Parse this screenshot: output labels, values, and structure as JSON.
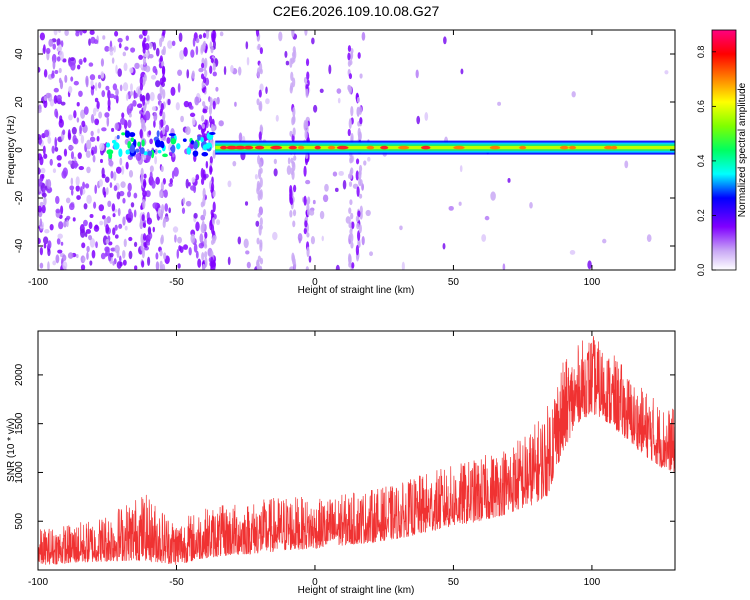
{
  "title": "C2E6.2026.109.10.08.G27",
  "chart_data": [
    {
      "type": "heatmap",
      "xlabel": "Height of straight line (km)",
      "ylabel": "Frequency (Hz)",
      "xlim": [
        -100,
        130
      ],
      "ylim": [
        -50,
        50
      ],
      "xticks": [
        -100,
        -50,
        0,
        50,
        100
      ],
      "xtick_labels": [
        "-100",
        "-50",
        "0",
        "50",
        "100"
      ],
      "yticks": [
        -40,
        -20,
        0,
        20,
        40
      ],
      "ytick_labels": [
        "-40",
        "-20",
        "0",
        "20",
        "40"
      ],
      "colorbar": {
        "label": "Normalized spectral amplitude",
        "range": [
          0,
          0.88
        ],
        "ticks": [
          0,
          0.2,
          0.4,
          0.6,
          0.8
        ],
        "tick_labels": [
          "0.0",
          "0.2",
          "0.4",
          "0.6",
          "0.8"
        ],
        "colormap": [
          "#ffffff",
          "#c9a8f5",
          "#8000ff",
          "#0000ff",
          "#00ffff",
          "#00ff60",
          "#80ff00",
          "#ffff00",
          "#ff8000",
          "#ff0000",
          "#ff0080"
        ]
      },
      "band": {
        "description_values": {
          "center_hz": 1,
          "half_width_hz": 2.5
        },
        "x_range": [
          -75,
          130
        ]
      },
      "grid": false
    },
    {
      "type": "line",
      "xlabel": "Height of straight line (km)",
      "ylabel": "SNR (10 * v/v)",
      "xlim": [
        -100,
        130
      ],
      "ylim": [
        0,
        2450
      ],
      "xticks": [
        -100,
        -50,
        0,
        50,
        100
      ],
      "xtick_labels": [
        "-100",
        "-50",
        "0",
        "50",
        "100"
      ],
      "yticks": [
        500,
        1000,
        1500,
        2000
      ],
      "ytick_labels": [
        "500",
        "1000",
        "1500",
        "2000"
      ],
      "series_color": "#f03232",
      "trend": {
        "x": [
          -100,
          -80,
          -62,
          -50,
          -40,
          -30,
          -20,
          -10,
          0,
          10,
          20,
          30,
          40,
          50,
          60,
          70,
          78,
          84,
          88,
          92,
          96,
          100,
          104,
          110,
          116,
          120,
          125,
          130
        ],
        "low": [
          50,
          80,
          100,
          50,
          120,
          150,
          170,
          200,
          220,
          250,
          280,
          320,
          380,
          450,
          500,
          580,
          660,
          760,
          1100,
          1350,
          1550,
          1600,
          1550,
          1400,
          1250,
          1150,
          1050,
          1000
        ],
        "high": [
          420,
          520,
          800,
          520,
          640,
          680,
          720,
          780,
          720,
          780,
          830,
          880,
          1000,
          1080,
          1160,
          1300,
          1450,
          1700,
          2100,
          2200,
          2350,
          2430,
          2300,
          2150,
          1900,
          1850,
          1700,
          1650
        ]
      },
      "grid": false
    }
  ]
}
